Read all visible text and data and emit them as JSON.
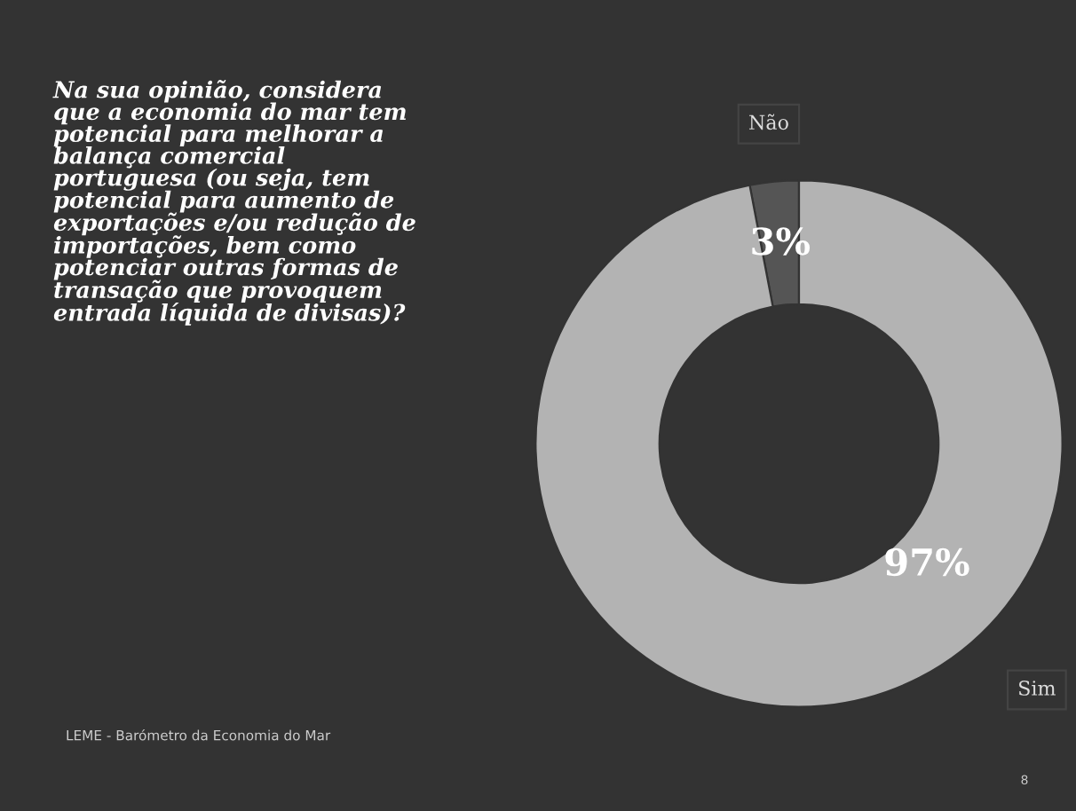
{
  "chart_data": {
    "type": "donut",
    "title": "Na sua opinião, considera\nque a economia do mar tem\npotencial para melhorar a\nbalança comercial\nportuguesa (ou seja, tem\npotencial para aumento de\nexportações e/ou redução de\nimportações, bem como\npotenciar outras formas de\ntransação que provoquem\nentrada líquida de divisas)?",
    "categories": [
      "Não",
      "Sim"
    ],
    "values": [
      3,
      97
    ],
    "colors": [
      "#555555",
      "#b3b3b3"
    ],
    "value_labels": [
      "3%",
      "97%"
    ],
    "legend": false,
    "annotations": [
      "LEME - Barómetro da Economia do Mar",
      "8"
    ]
  }
}
